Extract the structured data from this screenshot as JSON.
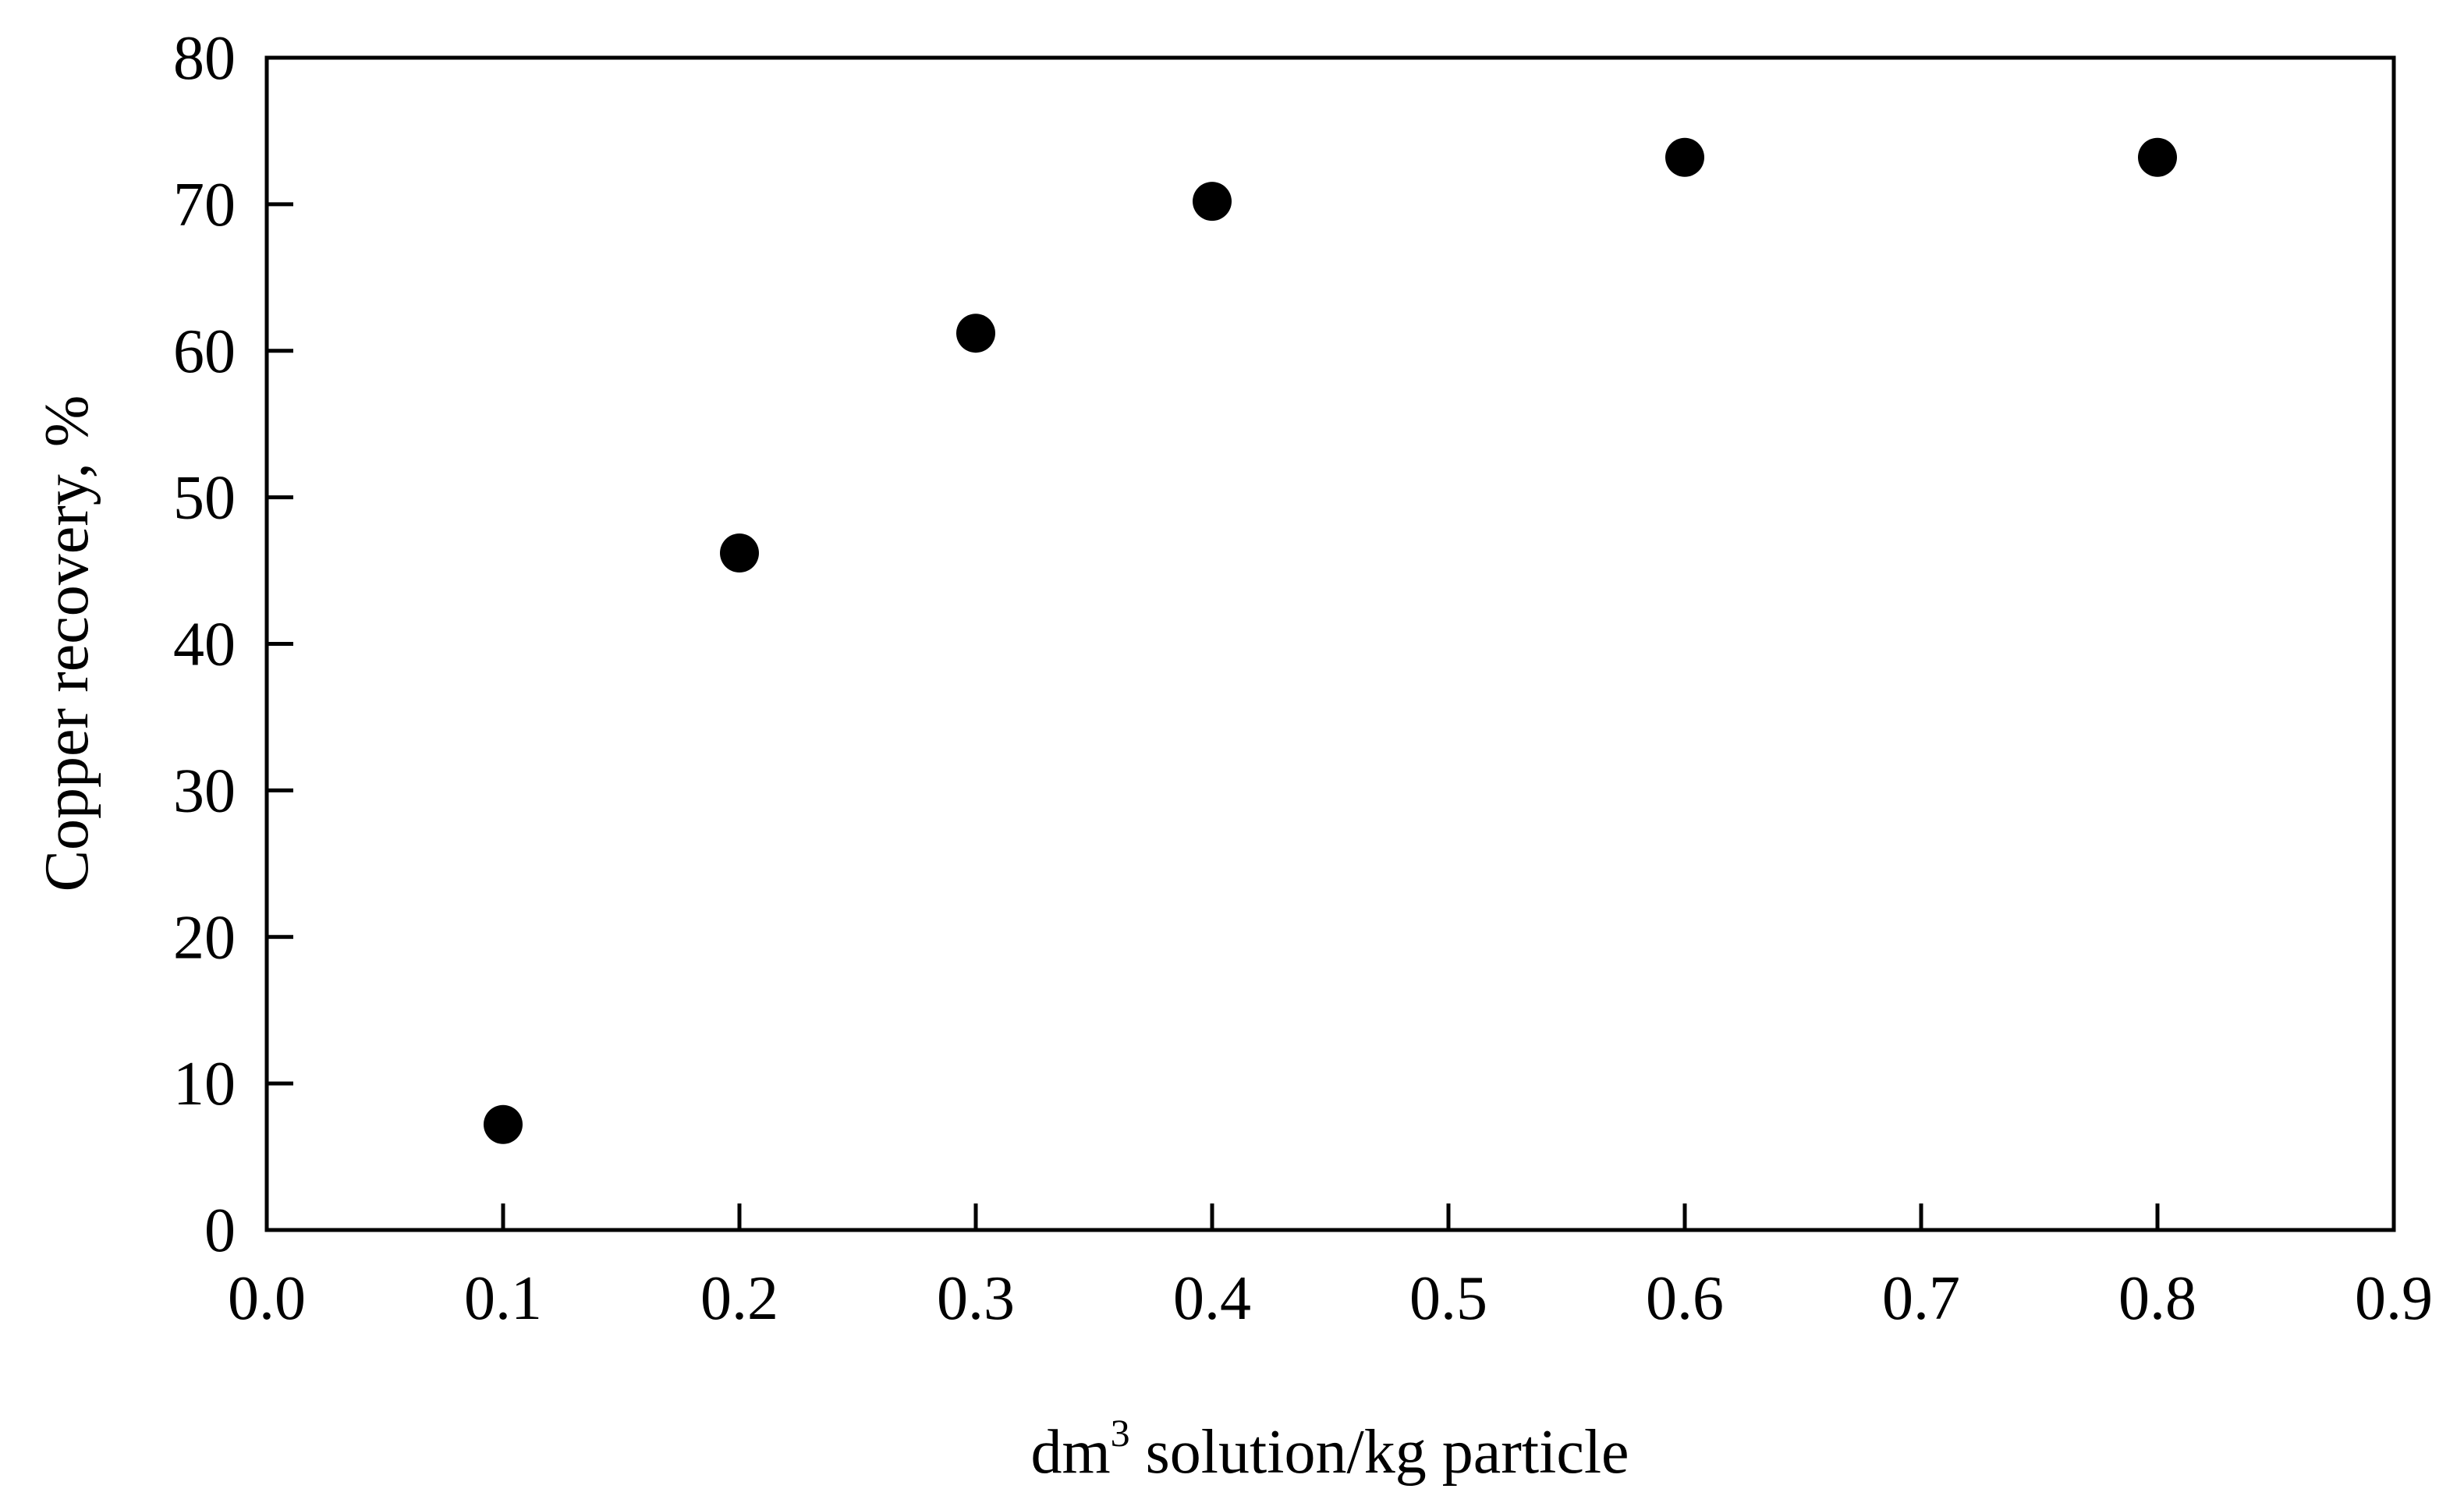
{
  "chart_data": {
    "type": "scatter",
    "title": "",
    "xlabel_base": "dm",
    "xlabel_sup": "3",
    "xlabel_rest": " solution/kg particle",
    "ylabel": "Copper recovery, %",
    "xlim": [
      0.0,
      0.9
    ],
    "ylim": [
      0,
      80
    ],
    "x_ticks": [
      "0.0",
      "0.1",
      "0.2",
      "0.3",
      "0.4",
      "0.5",
      "0.6",
      "0.7",
      "0.8",
      "0.9"
    ],
    "y_ticks": [
      "0",
      "10",
      "20",
      "30",
      "40",
      "50",
      "60",
      "70",
      "80"
    ],
    "grid": false,
    "legend": "none",
    "marker_color": "#000000",
    "series": [
      {
        "x": [
          0.1,
          0.2,
          0.3,
          0.4,
          0.6,
          0.8
        ],
        "y": [
          7.2,
          46.2,
          61.2,
          70.2,
          73.2,
          73.2
        ]
      }
    ]
  }
}
